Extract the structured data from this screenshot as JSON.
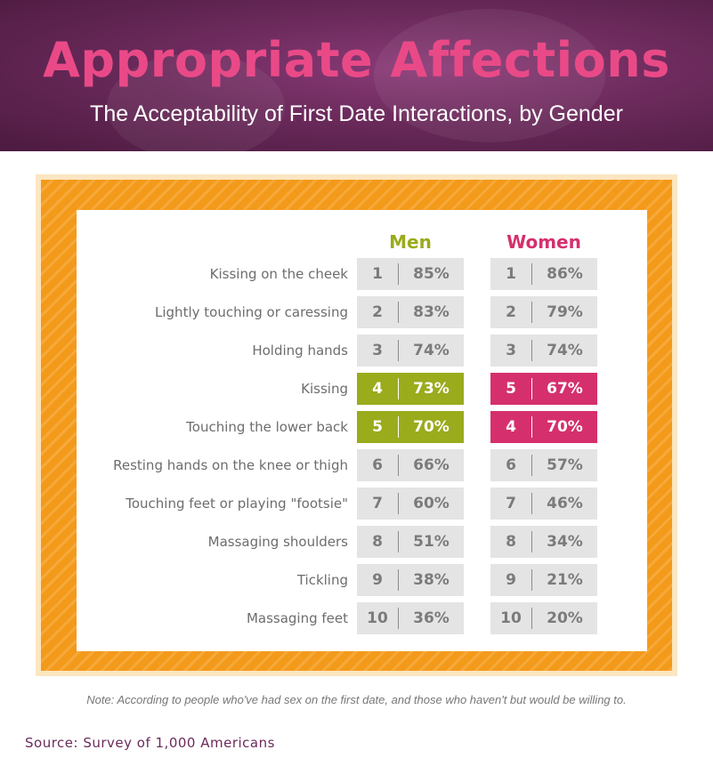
{
  "title": "Appropriate Affections",
  "subtitle": "The Acceptability of First Date Interactions, by Gender",
  "note": "Note: According to people who've had sex on the first date, and those who haven't but would be willing to.",
  "source": "Source: Survey of 1,000 Americans",
  "colors": {
    "men": "#9aab1c",
    "women": "#d5306d",
    "title": "#e94a87",
    "frame": "#f39a1a",
    "cell": "#e4e4e4"
  },
  "chart_data": {
    "type": "table",
    "columns": [
      "Men",
      "Women"
    ],
    "rows": [
      {
        "label": "Kissing on the cheek",
        "men": {
          "rank": "1",
          "pct": "85%"
        },
        "women": {
          "rank": "1",
          "pct": "86%"
        }
      },
      {
        "label": "Lightly touching or caressing",
        "men": {
          "rank": "2",
          "pct": "83%"
        },
        "women": {
          "rank": "2",
          "pct": "79%"
        }
      },
      {
        "label": "Holding hands",
        "men": {
          "rank": "3",
          "pct": "74%"
        },
        "women": {
          "rank": "3",
          "pct": "74%"
        }
      },
      {
        "label": "Kissing",
        "men": {
          "rank": "4",
          "pct": "73%",
          "highlight": true
        },
        "women": {
          "rank": "5",
          "pct": "67%",
          "highlight": true
        }
      },
      {
        "label": "Touching the lower back",
        "men": {
          "rank": "5",
          "pct": "70%",
          "highlight": true
        },
        "women": {
          "rank": "4",
          "pct": "70%",
          "highlight": true
        }
      },
      {
        "label": "Resting hands on the knee or thigh",
        "men": {
          "rank": "6",
          "pct": "66%"
        },
        "women": {
          "rank": "6",
          "pct": "57%"
        }
      },
      {
        "label": "Touching feet or playing \"footsie\"",
        "men": {
          "rank": "7",
          "pct": "60%"
        },
        "women": {
          "rank": "7",
          "pct": "46%"
        }
      },
      {
        "label": "Massaging shoulders",
        "men": {
          "rank": "8",
          "pct": "51%"
        },
        "women": {
          "rank": "8",
          "pct": "34%"
        }
      },
      {
        "label": "Tickling",
        "men": {
          "rank": "9",
          "pct": "38%"
        },
        "women": {
          "rank": "9",
          "pct": "21%"
        }
      },
      {
        "label": "Massaging feet",
        "men": {
          "rank": "10",
          "pct": "36%"
        },
        "women": {
          "rank": "10",
          "pct": "20%"
        }
      }
    ]
  }
}
